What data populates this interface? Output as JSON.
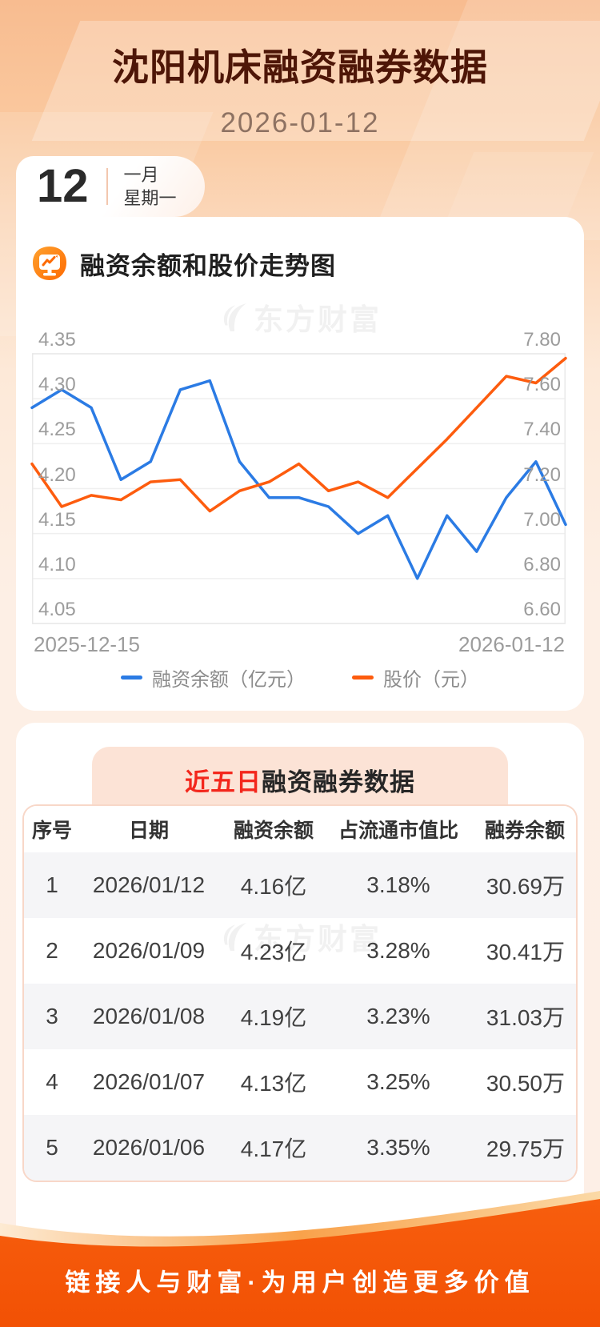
{
  "page": {
    "title": "沈阳机床融资融券数据",
    "date": "2026-01-12"
  },
  "date_badge": {
    "day": "12",
    "month": "一月",
    "weekday": "星期一"
  },
  "chart_section": {
    "title": "融资余额和股价走势图",
    "watermark": "东方财富",
    "x_start_label": "2025-12-15",
    "x_end_label": "2026-01-12",
    "legend": [
      {
        "label": "融资余额（亿元）",
        "color": "#2b7be4"
      },
      {
        "label": "股价（元）",
        "color": "#fd5c0e"
      }
    ]
  },
  "chart_data": {
    "type": "line",
    "title": "融资余额和股价走势图",
    "x_range": [
      "2025-12-15",
      "2026-01-12"
    ],
    "grid": true,
    "legend_position": "bottom",
    "left_axis": {
      "name": "融资余额（亿元）",
      "min": 4.05,
      "max": 4.35,
      "ticks": [
        "4.35",
        "4.30",
        "4.25",
        "4.20",
        "4.15",
        "4.10",
        "4.05"
      ]
    },
    "right_axis": {
      "name": "股价（元）",
      "min": 6.6,
      "max": 7.8,
      "ticks": [
        "7.80",
        "7.60",
        "7.40",
        "7.20",
        "7.00",
        "6.80",
        "6.60"
      ]
    },
    "series": [
      {
        "name": "融资余额（亿元）",
        "axis": "left",
        "color": "#2b7be4",
        "values": [
          4.29,
          4.31,
          4.29,
          4.21,
          4.23,
          4.31,
          4.32,
          4.23,
          4.19,
          4.19,
          4.18,
          4.15,
          4.17,
          4.1,
          4.17,
          4.13,
          4.19,
          4.23,
          4.16
        ]
      },
      {
        "name": "股价（元）",
        "axis": "right",
        "color": "#fd5c0e",
        "values": [
          7.31,
          7.12,
          7.17,
          7.15,
          7.23,
          7.24,
          7.1,
          7.19,
          7.23,
          7.31,
          7.19,
          7.23,
          7.16,
          7.29,
          7.42,
          7.56,
          7.7,
          7.67,
          7.78
        ]
      }
    ]
  },
  "table_section": {
    "title_highlight": "近五日",
    "title_rest": "融资融券数据",
    "watermark": "东方财富",
    "columns": [
      "序号",
      "日期",
      "融资余额",
      "占流通市值比",
      "融券余额"
    ],
    "rows": [
      [
        "1",
        "2026/01/12",
        "4.16亿",
        "3.18%",
        "30.69万"
      ],
      [
        "2",
        "2026/01/09",
        "4.23亿",
        "3.28%",
        "30.41万"
      ],
      [
        "3",
        "2026/01/08",
        "4.19亿",
        "3.23%",
        "31.03万"
      ],
      [
        "4",
        "2026/01/07",
        "4.13亿",
        "3.25%",
        "30.50万"
      ],
      [
        "5",
        "2026/01/06",
        "4.17亿",
        "3.35%",
        "29.75万"
      ]
    ]
  },
  "footer": {
    "slogan": "链接人与财富·为用户创造更多价值"
  },
  "colors": {
    "header_title": "#4e1607",
    "header_date": "#8e7262",
    "accent_orange": "#f45708",
    "line_blue": "#2b7be4",
    "line_orange": "#fd5c0e",
    "banner_red": "#f3271c",
    "banner_bg": "#fce3d6",
    "table_border": "#f8d7c8",
    "row_shade": "#f5f5f7",
    "axis_gray": "#9c9c9c"
  }
}
